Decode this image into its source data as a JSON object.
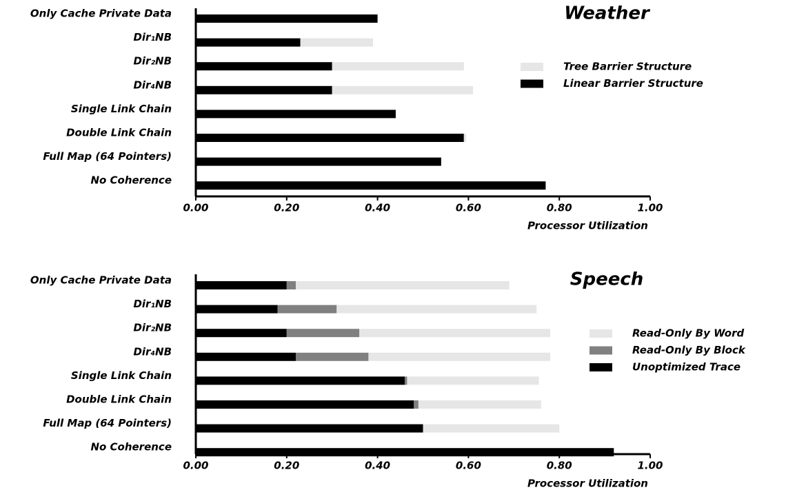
{
  "chart_data": [
    {
      "type": "bar",
      "orientation": "horizontal",
      "stacked": true,
      "title": "Weather",
      "x_label": "Processor Utilization",
      "categories": [
        "Only Cache Private Data",
        "Dir₁NB",
        "Dir₂NB",
        "Dir₄NB",
        "Single Link Chain",
        "Double Link Chain",
        "Full Map (64 Pointers)",
        "No Coherence"
      ],
      "series": [
        {
          "name": "Linear Barrier Structure",
          "color": "#000000",
          "values": [
            0.4,
            0.23,
            0.3,
            0.3,
            0.44,
            0.59,
            0.54,
            0.77
          ]
        },
        {
          "name": "Tree Barrier Structure",
          "color": "#e6e6e6",
          "values": [
            0,
            0.16,
            0.29,
            0.31,
            0,
            0.005,
            0,
            0
          ]
        }
      ],
      "xlim": [
        0,
        1
      ],
      "xticks": [
        {
          "value": 0,
          "label": "0.00"
        },
        {
          "value": 0.2,
          "label": "0.20"
        },
        {
          "value": 0.4,
          "label": "0.40"
        },
        {
          "value": 0.6,
          "label": "0.60"
        },
        {
          "value": 0.8,
          "label": "0.80"
        },
        {
          "value": 1,
          "label": "1.00"
        }
      ]
    },
    {
      "type": "bar",
      "orientation": "horizontal",
      "stacked": true,
      "title": "Speech",
      "x_label": "Processor Utilization",
      "categories": [
        "Only Cache Private Data",
        "Dir₁NB",
        "Dir₂NB",
        "Dir₄NB",
        "Single Link Chain",
        "Double Link Chain",
        "Full Map (64 Pointers)",
        "No Coherence"
      ],
      "series": [
        {
          "name": "Unoptimized Trace",
          "color": "#000000",
          "values": [
            0.2,
            0.18,
            0.2,
            0.22,
            0.46,
            0.48,
            0.5,
            0.92
          ]
        },
        {
          "name": "Read-Only By Block",
          "color": "#808080",
          "values": [
            0.02,
            0.13,
            0.16,
            0.16,
            0.005,
            0.01,
            0,
            0
          ]
        },
        {
          "name": "Read-Only By Word",
          "color": "#e6e6e6",
          "values": [
            0.47,
            0.44,
            0.42,
            0.4,
            0.29,
            0.27,
            0.3,
            0
          ]
        }
      ],
      "xlim": [
        0,
        1
      ],
      "xticks": [
        {
          "value": 0,
          "label": "0.00"
        },
        {
          "value": 0.2,
          "label": "0.20"
        },
        {
          "value": 0.4,
          "label": "0.40"
        },
        {
          "value": 0.6,
          "label": "0.60"
        },
        {
          "value": 0.8,
          "label": "0.80"
        },
        {
          "value": 1,
          "label": "1.00"
        }
      ]
    }
  ]
}
